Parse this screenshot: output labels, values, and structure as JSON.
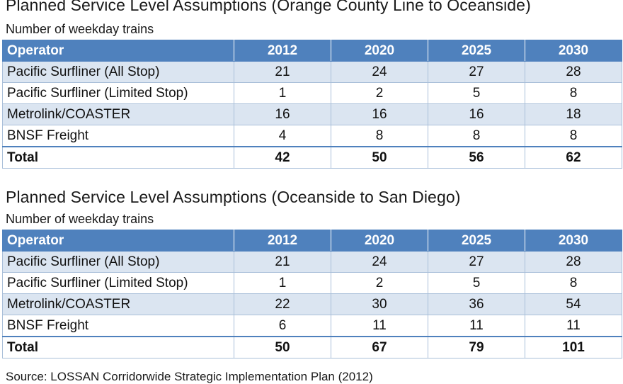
{
  "table1": {
    "title": "Planned Service Level Assumptions  (Orange County Line to Oceanside)",
    "subtitle": "Number of weekday trains",
    "headers": [
      "Operator",
      "2012",
      "2020",
      "2025",
      "2030"
    ],
    "rows": [
      [
        "Pacific Surfliner (All Stop)",
        "21",
        "24",
        "27",
        "28"
      ],
      [
        "Pacific Surfliner (Limited Stop)",
        "1",
        "2",
        "5",
        "8"
      ],
      [
        "Metrolink/COASTER",
        "16",
        "16",
        "16",
        "18"
      ],
      [
        "BNSF Freight",
        "4",
        "8",
        "8",
        "8"
      ]
    ],
    "total": [
      "Total",
      "42",
      "50",
      "56",
      "62"
    ]
  },
  "table2": {
    "title": "Planned Service Level Assumptions (Oceanside to San Diego)",
    "subtitle": "Number of weekday trains",
    "headers": [
      "Operator",
      "2012",
      "2020",
      "2025",
      "2030"
    ],
    "rows": [
      [
        "Pacific Surfliner (All Stop)",
        "21",
        "24",
        "27",
        "28"
      ],
      [
        "Pacific Surfliner (Limited Stop)",
        "1",
        "2",
        "5",
        "8"
      ],
      [
        "Metrolink/COASTER",
        "22",
        "30",
        "36",
        "54"
      ],
      [
        "BNSF Freight",
        "6",
        "11",
        "11",
        "11"
      ]
    ],
    "total": [
      "Total",
      "50",
      "67",
      "79",
      "101"
    ]
  },
  "source": "Source: LOSSAN Corridorwide Strategic Implementation Plan (2012)",
  "colors": {
    "header_bg": "#4f81bd",
    "band_bg": "#dbe5f1",
    "border": "#a9bfd9"
  }
}
